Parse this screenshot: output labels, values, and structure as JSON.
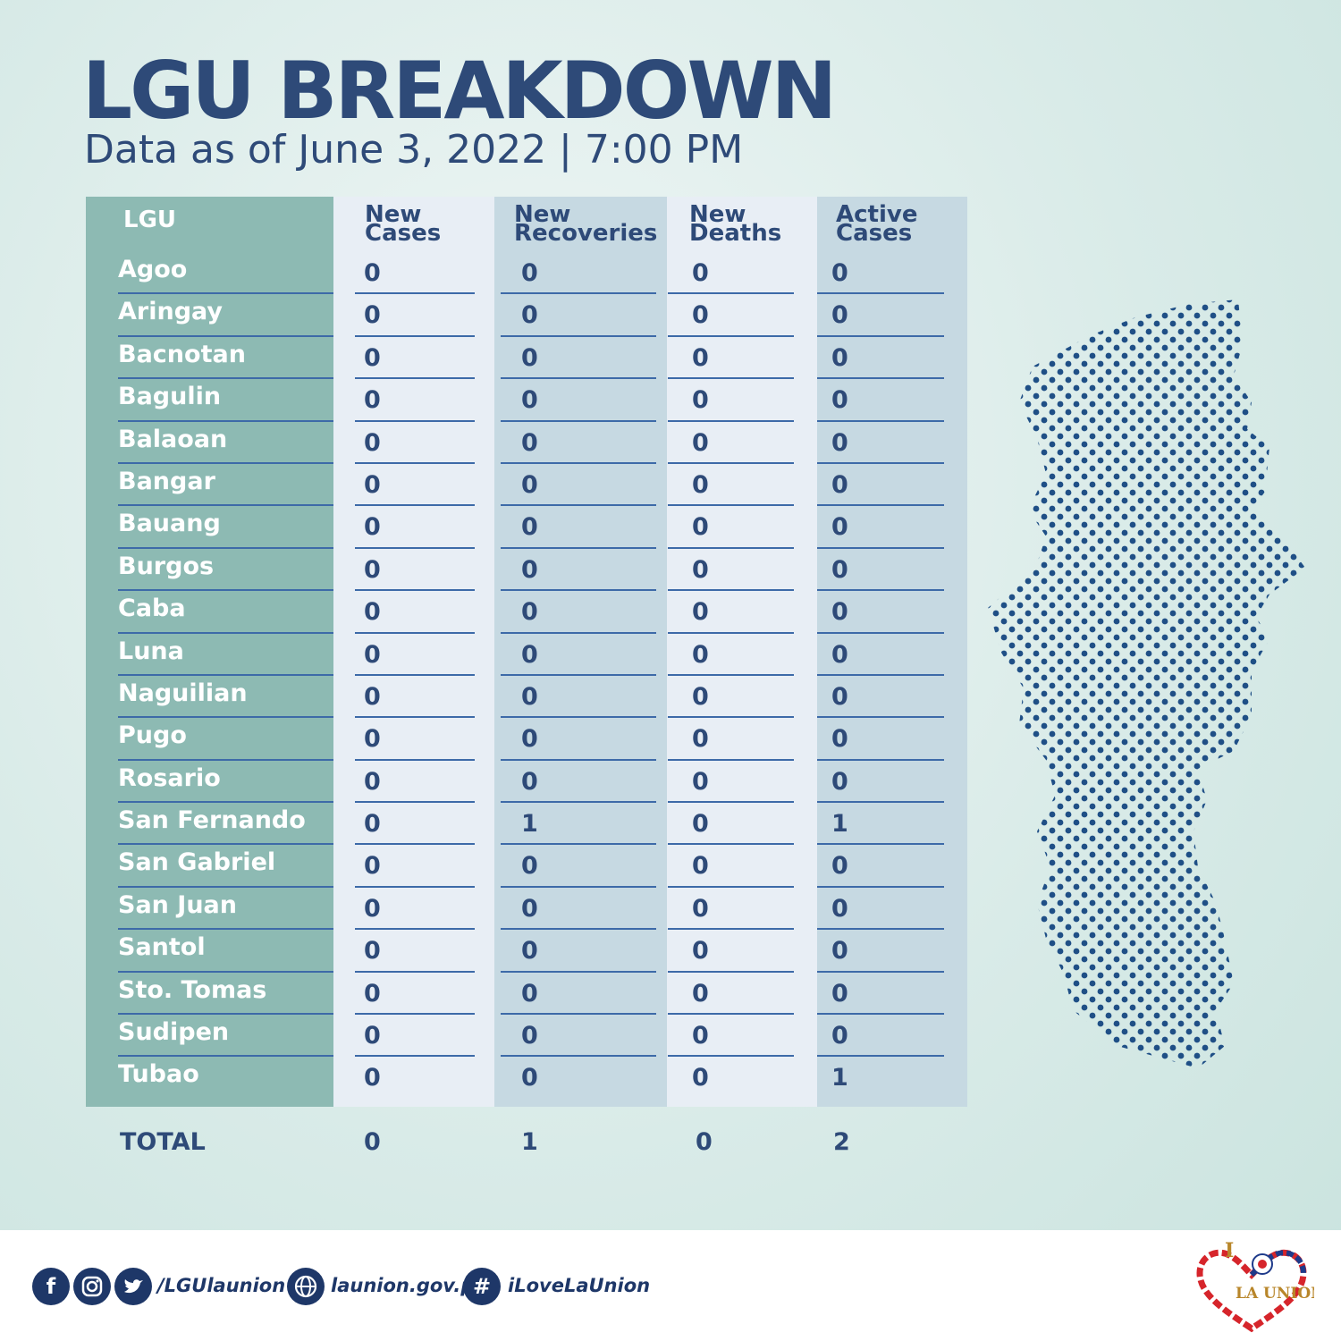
{
  "header": {
    "title": "LGU BREAKDOWN",
    "subtitle": "Data as of June 3, 2022 | 7:00 PM"
  },
  "table": {
    "columns": [
      {
        "line1": "LGU",
        "line2": ""
      },
      {
        "line1": "New",
        "line2": "Cases"
      },
      {
        "line1": "New",
        "line2": "Recoveries"
      },
      {
        "line1": "New",
        "line2": "Deaths"
      },
      {
        "line1": "Active",
        "line2": "Cases"
      }
    ],
    "rows": [
      {
        "lgu": "Agoo",
        "new_cases": "0",
        "new_recoveries": "0",
        "new_deaths": "0",
        "active_cases": "0"
      },
      {
        "lgu": "Aringay",
        "new_cases": "0",
        "new_recoveries": "0",
        "new_deaths": "0",
        "active_cases": "0"
      },
      {
        "lgu": "Bacnotan",
        "new_cases": "0",
        "new_recoveries": "0",
        "new_deaths": "0",
        "active_cases": "0"
      },
      {
        "lgu": "Bagulin",
        "new_cases": "0",
        "new_recoveries": "0",
        "new_deaths": "0",
        "active_cases": "0"
      },
      {
        "lgu": "Balaoan",
        "new_cases": "0",
        "new_recoveries": "0",
        "new_deaths": "0",
        "active_cases": "0"
      },
      {
        "lgu": "Bangar",
        "new_cases": "0",
        "new_recoveries": "0",
        "new_deaths": "0",
        "active_cases": "0"
      },
      {
        "lgu": "Bauang",
        "new_cases": "0",
        "new_recoveries": "0",
        "new_deaths": "0",
        "active_cases": "0"
      },
      {
        "lgu": "Burgos",
        "new_cases": "0",
        "new_recoveries": "0",
        "new_deaths": "0",
        "active_cases": "0"
      },
      {
        "lgu": "Caba",
        "new_cases": "0",
        "new_recoveries": "0",
        "new_deaths": "0",
        "active_cases": "0"
      },
      {
        "lgu": "Luna",
        "new_cases": "0",
        "new_recoveries": "0",
        "new_deaths": "0",
        "active_cases": "0"
      },
      {
        "lgu": "Naguilian",
        "new_cases": "0",
        "new_recoveries": "0",
        "new_deaths": "0",
        "active_cases": "0"
      },
      {
        "lgu": "Pugo",
        "new_cases": "0",
        "new_recoveries": "0",
        "new_deaths": "0",
        "active_cases": "0"
      },
      {
        "lgu": "Rosario",
        "new_cases": "0",
        "new_recoveries": "0",
        "new_deaths": "0",
        "active_cases": "0"
      },
      {
        "lgu": "San Fernando",
        "new_cases": "0",
        "new_recoveries": "1",
        "new_deaths": "0",
        "active_cases": "1"
      },
      {
        "lgu": "San Gabriel",
        "new_cases": "0",
        "new_recoveries": "0",
        "new_deaths": "0",
        "active_cases": "0"
      },
      {
        "lgu": "San Juan",
        "new_cases": "0",
        "new_recoveries": "0",
        "new_deaths": "0",
        "active_cases": "0"
      },
      {
        "lgu": "Santol",
        "new_cases": "0",
        "new_recoveries": "0",
        "new_deaths": "0",
        "active_cases": "0"
      },
      {
        "lgu": "Sto. Tomas",
        "new_cases": "0",
        "new_recoveries": "0",
        "new_deaths": "0",
        "active_cases": "0"
      },
      {
        "lgu": "Sudipen",
        "new_cases": "0",
        "new_recoveries": "0",
        "new_deaths": "0",
        "active_cases": "0"
      },
      {
        "lgu": "Tubao",
        "new_cases": "0",
        "new_recoveries": "0",
        "new_deaths": "0",
        "active_cases": "1"
      }
    ],
    "total": {
      "label": "TOTAL",
      "new_cases": "0",
      "new_recoveries": "1",
      "new_deaths": "0",
      "active_cases": "2"
    }
  },
  "footer": {
    "social_handle": "/LGUlaunion",
    "website": "launion.gov.ph",
    "hashtag": "iLoveLaUnion",
    "icons": [
      "facebook-icon",
      "instagram-icon",
      "twitter-icon",
      "globe-icon",
      "hashtag-icon"
    ],
    "logo_text": "LA UNION",
    "logo_letter": "I"
  },
  "colors": {
    "navy": "#2e4a78",
    "lgu_column": "#8dbab3",
    "light_column": "#e8eef5",
    "blue_column": "#c6d9e2",
    "footer_navy": "#1e3768"
  }
}
